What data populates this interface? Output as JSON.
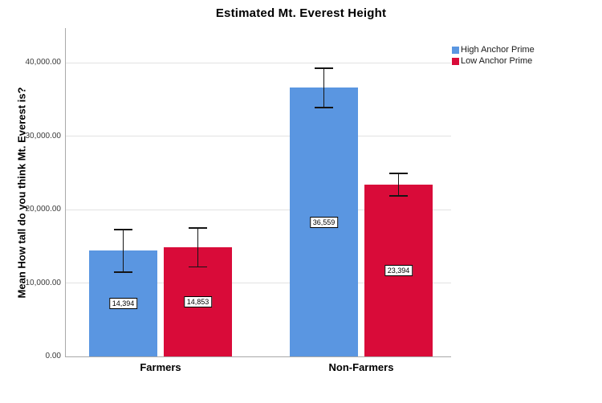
{
  "chart_data": {
    "type": "bar",
    "title": "Estimated Mt. Everest Height",
    "ylabel": "Mean How tall do you think Mt. Everest is?",
    "xlabel": "",
    "categories": [
      "Farmers",
      "Non-Farmers"
    ],
    "series": [
      {
        "name": "High Anchor Prime",
        "color": "#5A96E1",
        "values": [
          14394,
          36559
        ],
        "value_labels": [
          "14,394",
          "36,559"
        ],
        "errors": [
          2900,
          2700
        ]
      },
      {
        "name": "Low Anchor Prime",
        "color": "#D90B39",
        "values": [
          14853,
          23394
        ],
        "value_labels": [
          "14,853",
          "23,394"
        ],
        "errors": [
          2650,
          1550
        ]
      }
    ],
    "ylim": [
      0,
      44700
    ],
    "yticks": [
      0,
      10000,
      20000,
      30000,
      40000
    ],
    "ytick_labels": [
      "0.00",
      "10,000.00",
      "20,000.00",
      "30,000.00",
      "40,000.00"
    ],
    "grid": true,
    "legend_position": "top-right",
    "error_bars": true
  },
  "colors": {
    "high_anchor": "#5A96E1",
    "low_anchor": "#D90B39",
    "gridline": "#E2E2E2",
    "axis": "#A9A9A9",
    "error_bar": "#151515",
    "background": "#FFFFFF"
  }
}
